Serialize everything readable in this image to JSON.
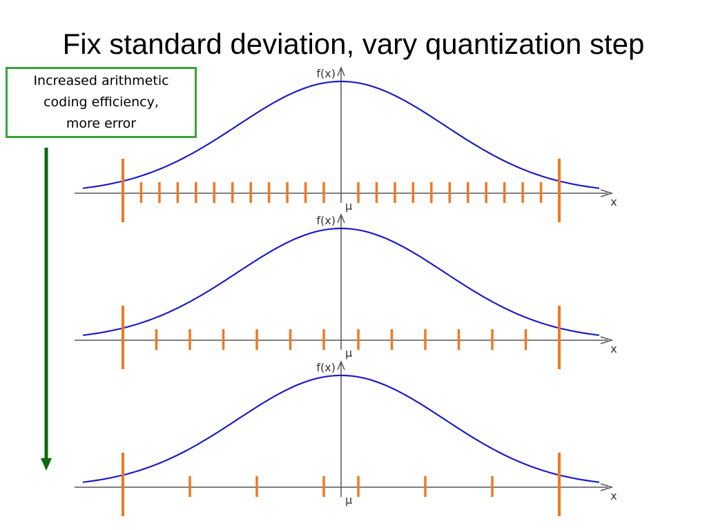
{
  "title": "Fix standard deviation, vary quantization step",
  "callout": {
    "lines": [
      "Increased arithmetic",
      "coding efficiency,",
      "more error"
    ],
    "border_color": "#3aa335"
  },
  "arrow": {
    "color": "#0b6b0b",
    "direction": "down"
  },
  "colors": {
    "curve": "#1c1cc0",
    "ticks": "#f07820",
    "axis": "#555555"
  },
  "panels": [
    {
      "y_axis_label": "f(x)",
      "x_axis_label": "x",
      "mean_label": "μ",
      "ticks_per_side": 11
    },
    {
      "y_axis_label": "f(x)",
      "x_axis_label": "x",
      "mean_label": "μ",
      "ticks_per_side": 6
    },
    {
      "y_axis_label": "f(x)",
      "x_axis_label": "x",
      "mean_label": "μ",
      "ticks_per_side": 3
    }
  ]
}
